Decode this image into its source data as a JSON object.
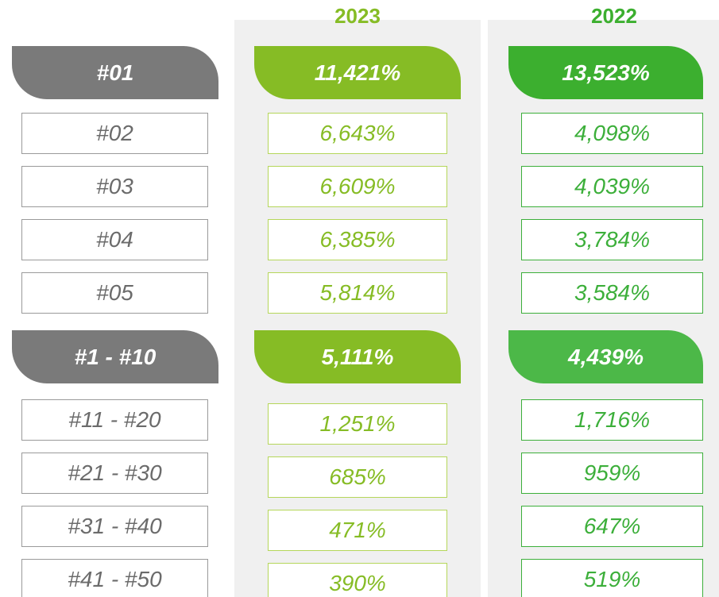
{
  "header": {
    "columns": [
      "2023",
      "2022"
    ]
  },
  "sections": [
    {
      "summary": {
        "label": "#01",
        "values": [
          "11,421%",
          "13,523%"
        ]
      },
      "rows": [
        {
          "label": "#02",
          "values": [
            "6,643%",
            "4,098%"
          ]
        },
        {
          "label": "#03",
          "values": [
            "6,609%",
            "4,039%"
          ]
        },
        {
          "label": "#04",
          "values": [
            "6,385%",
            "3,784%"
          ]
        },
        {
          "label": "#05",
          "values": [
            "5,814%",
            "3,584%"
          ]
        }
      ]
    },
    {
      "summary": {
        "label": "#1 - #10",
        "values": [
          "5,111%",
          "4,439%"
        ]
      },
      "rows": [
        {
          "label": "#11 - #20",
          "values": [
            "1,251%",
            "1,716%"
          ]
        },
        {
          "label": "#21 - #30",
          "values": [
            "685%",
            "959%"
          ]
        },
        {
          "label": "#31 - #40",
          "values": [
            "471%",
            "647%"
          ]
        },
        {
          "label": "#41 - #50",
          "values": [
            "390%",
            "519%"
          ]
        }
      ]
    }
  ]
}
